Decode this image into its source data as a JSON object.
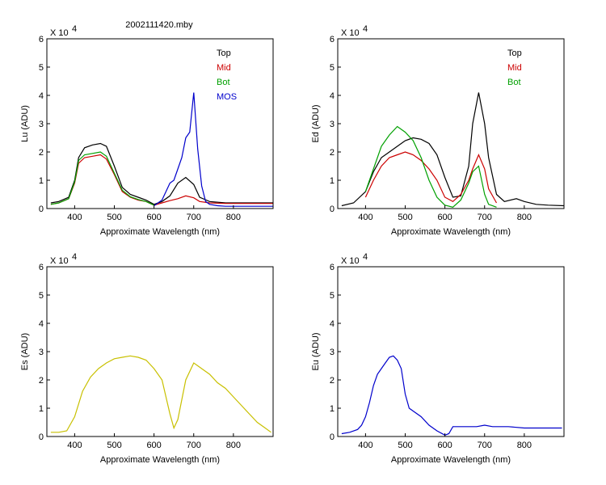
{
  "figure_title": "2002111420.mby",
  "chart_data": [
    {
      "type": "line",
      "id": "lu",
      "ylabel": "Lu (ADU)",
      "xlabel": "Approximate Wavelength (nm)",
      "exponent_label": "X 10",
      "exponent": "4",
      "xlim": [
        330,
        900
      ],
      "ylim": [
        0,
        60000
      ],
      "xticks": [
        400,
        500,
        600,
        700,
        800
      ],
      "yticks": [
        0,
        1,
        2,
        3,
        4,
        5,
        6
      ],
      "legend_position": "top-right",
      "series": [
        {
          "name": "Top",
          "color": "#000000",
          "x": [
            340,
            360,
            385,
            400,
            410,
            425,
            445,
            465,
            480,
            500,
            520,
            540,
            560,
            580,
            600,
            620,
            640,
            660,
            680,
            700,
            715,
            740,
            780,
            820,
            860,
            900
          ],
          "y": [
            2000,
            2500,
            4000,
            10000,
            18000,
            21500,
            22500,
            23000,
            22000,
            15000,
            7500,
            5000,
            4000,
            3000,
            1500,
            2500,
            4500,
            9000,
            11000,
            8500,
            4000,
            2500,
            2000,
            2000,
            2000,
            2000
          ]
        },
        {
          "name": "Mid",
          "color": "#cc0000",
          "x": [
            340,
            360,
            385,
            400,
            410,
            425,
            445,
            465,
            480,
            500,
            520,
            540,
            560,
            580,
            600,
            620,
            640,
            660,
            680,
            700,
            715,
            740,
            780,
            820,
            860,
            900
          ],
          "y": [
            1500,
            2000,
            3500,
            9000,
            16000,
            18000,
            18500,
            19000,
            17500,
            12000,
            6000,
            4000,
            3000,
            2500,
            1200,
            2000,
            2800,
            3500,
            4500,
            3800,
            2500,
            2000,
            1800,
            1800,
            1800,
            1800
          ]
        },
        {
          "name": "Bot",
          "color": "#00a000",
          "x": [
            340,
            360,
            385,
            400,
            410,
            425,
            445,
            465,
            480,
            500,
            520,
            540,
            560,
            580,
            600
          ],
          "y": [
            1500,
            2000,
            3500,
            9500,
            17000,
            19000,
            19500,
            20000,
            18500,
            12500,
            6500,
            4200,
            3200,
            2500,
            1200
          ]
        },
        {
          "name": "MOS",
          "color": "#0000cc",
          "x": [
            600,
            620,
            630,
            640,
            650,
            660,
            670,
            680,
            690,
            700,
            710,
            720,
            730,
            740,
            760,
            780,
            820,
            860,
            900
          ],
          "y": [
            1000,
            3000,
            6000,
            9000,
            10000,
            14000,
            18000,
            25000,
            27000,
            41000,
            21000,
            8000,
            2500,
            1500,
            1000,
            800,
            800,
            800,
            800
          ]
        }
      ]
    },
    {
      "type": "line",
      "id": "ed",
      "ylabel": "Ed  (ADU)",
      "xlabel": "Approximate Wavelength (nm)",
      "exponent_label": "X 10",
      "exponent": "4",
      "xlim": [
        330,
        900
      ],
      "ylim": [
        0,
        60000
      ],
      "xticks": [
        400,
        500,
        600,
        700,
        800
      ],
      "yticks": [
        0,
        1,
        2,
        3,
        4,
        5,
        6
      ],
      "legend_position": "top-right",
      "series": [
        {
          "name": "Top",
          "color": "#000000",
          "x": [
            340,
            370,
            400,
            420,
            440,
            460,
            480,
            500,
            520,
            540,
            560,
            580,
            600,
            620,
            640,
            660,
            670,
            685,
            700,
            710,
            730,
            750,
            780,
            800,
            830,
            860,
            900
          ],
          "y": [
            1000,
            2000,
            6000,
            13000,
            18000,
            20000,
            22000,
            24000,
            25000,
            24500,
            23000,
            19000,
            11000,
            4000,
            4500,
            15000,
            30000,
            41000,
            30000,
            18000,
            5000,
            2500,
            3500,
            2500,
            1500,
            1200,
            1000
          ]
        },
        {
          "name": "Mid",
          "color": "#cc0000",
          "x": [
            400,
            420,
            440,
            460,
            480,
            500,
            520,
            540,
            560,
            580,
            600,
            620,
            640,
            660,
            670,
            685,
            700,
            710,
            730
          ],
          "y": [
            4000,
            10000,
            15000,
            18000,
            19000,
            20000,
            19000,
            17000,
            14000,
            10000,
            4000,
            2500,
            5000,
            10000,
            14000,
            19000,
            14000,
            7000,
            2000
          ]
        },
        {
          "name": "Bot",
          "color": "#00a000",
          "x": [
            400,
            420,
            440,
            460,
            480,
            500,
            520,
            540,
            560,
            580,
            600,
            620,
            640,
            660,
            670,
            685,
            700,
            710,
            730
          ],
          "y": [
            6000,
            14000,
            22000,
            26000,
            29000,
            27000,
            24000,
            18000,
            10000,
            4000,
            1200,
            500,
            3000,
            9000,
            13000,
            15000,
            5000,
            1500,
            500
          ]
        }
      ]
    },
    {
      "type": "line",
      "id": "es",
      "ylabel": "Es  (ADU)",
      "xlabel": "Approximate Wavelength (nm)",
      "exponent_label": "X 10",
      "exponent": "4",
      "xlim": [
        330,
        900
      ],
      "ylim": [
        0,
        60000
      ],
      "xticks": [
        400,
        500,
        600,
        700,
        800
      ],
      "yticks": [
        0,
        1,
        2,
        3,
        4,
        5,
        6
      ],
      "series": [
        {
          "name": "Es",
          "color": "#c8c000",
          "x": [
            340,
            360,
            380,
            400,
            420,
            440,
            460,
            480,
            500,
            520,
            540,
            560,
            580,
            600,
            620,
            640,
            650,
            660,
            680,
            700,
            720,
            740,
            760,
            780,
            800,
            820,
            840,
            860,
            880,
            895
          ],
          "y": [
            1500,
            1500,
            2000,
            7000,
            16000,
            21000,
            24000,
            26000,
            27500,
            28000,
            28500,
            28000,
            27000,
            24000,
            20000,
            8000,
            3000,
            6000,
            20000,
            26000,
            24000,
            22000,
            19000,
            17000,
            14000,
            11000,
            8000,
            5000,
            3000,
            1500
          ]
        }
      ]
    },
    {
      "type": "line",
      "id": "eu",
      "ylabel": "Eu  (ADU)",
      "xlabel": "Approximate Wavelength (nm)",
      "exponent_label": "X 10",
      "exponent": "4",
      "xlim": [
        330,
        900
      ],
      "ylim": [
        0,
        60000
      ],
      "xticks": [
        400,
        500,
        600,
        700,
        800
      ],
      "yticks": [
        0,
        1,
        2,
        3,
        4,
        5,
        6
      ],
      "series": [
        {
          "name": "Eu",
          "color": "#0000cc",
          "x": [
            340,
            360,
            380,
            390,
            400,
            410,
            420,
            430,
            440,
            450,
            460,
            470,
            480,
            490,
            500,
            510,
            520,
            540,
            560,
            580,
            600,
            610,
            620,
            640,
            660,
            680,
            700,
            720,
            760,
            800,
            850,
            895
          ],
          "y": [
            1000,
            1500,
            2500,
            4000,
            7000,
            12000,
            18000,
            22000,
            24000,
            26000,
            28000,
            28500,
            27000,
            24000,
            15000,
            10000,
            9000,
            7000,
            4000,
            2000,
            500,
            1000,
            3500,
            3500,
            3500,
            3500,
            4000,
            3500,
            3500,
            3000,
            3000,
            3000
          ]
        }
      ]
    }
  ]
}
